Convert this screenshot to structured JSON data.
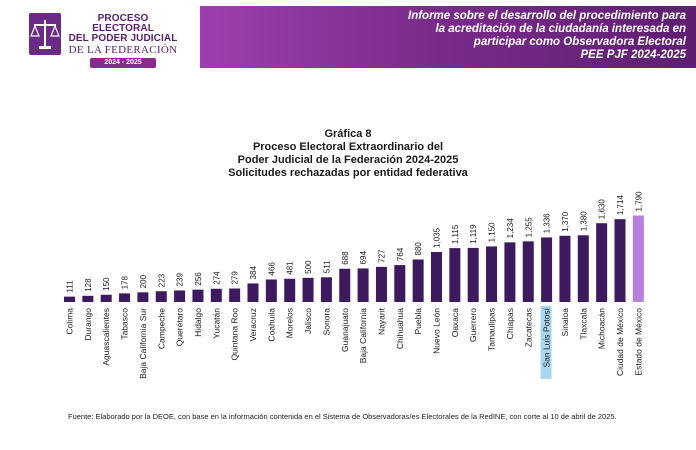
{
  "logo": {
    "line1": "PROCESO ELECTORAL",
    "line2": "DEL PODER JUDICIAL",
    "line3": "DE LA FEDERACIÓN",
    "years": "2024 - 2025"
  },
  "banner": {
    "line1": "Informe sobre el desarrollo del procedimiento para",
    "line2": "la acreditación de la ciudadanía interesada en",
    "line3": "participar como Observadora Electoral",
    "line4": "PEE PJF 2024-2025"
  },
  "chart_title": {
    "line1": "Gráfica 8",
    "line2": "Proceso Electoral Extraordinario del",
    "line3": "Poder Judicial de la Federación 2024-2025",
    "line4": "Solicitudes rechazadas por entidad federativa"
  },
  "source": "Fuente: Elaborado por la DEOE, con base en la información contenida en el Sistema de Observadoras/es Electorales de la RedINE, con corte al 10 de abril de 2025.",
  "colors": {
    "bar": "#3d1a5f",
    "bar_highlight": "#b77fe0",
    "banner": "#7b2c8c",
    "label_highlight": "#a9d7f0"
  },
  "chart_data": {
    "type": "bar",
    "title": "Solicitudes rechazadas por entidad federativa",
    "categories": [
      "Colima",
      "Durango",
      "Aguascalientes",
      "Tabasco",
      "Baja California Sur",
      "Campeche",
      "Querétaro",
      "Hidalgo",
      "Yucatán",
      "Quintana Roo",
      "Veracruz",
      "Coahuila",
      "Morelos",
      "Jalisco",
      "Sonora",
      "Guanajuato",
      "Baja California",
      "Nayarit",
      "Chihuahua",
      "Puebla",
      "Nuevo León",
      "Oaxaca",
      "Guerrero",
      "Tamaulipas",
      "Chiapas",
      "Zacatecas",
      "San Luis Potosí",
      "Sinaloa",
      "Tlaxcala",
      "Michoacán",
      "Ciudad de México",
      "Estado de México"
    ],
    "values": [
      111,
      128,
      150,
      178,
      200,
      223,
      239,
      256,
      274,
      279,
      384,
      466,
      481,
      500,
      511,
      688,
      694,
      727,
      764,
      880,
      1035,
      1115,
      1119,
      1150,
      1234,
      1255,
      1336,
      1370,
      1380,
      1630,
      1714,
      1790
    ],
    "value_labels": [
      "111",
      "128",
      "150",
      "178",
      "200",
      "223",
      "239",
      "256",
      "274",
      "279",
      "384",
      "466",
      "481",
      "500",
      "511",
      "688",
      "694",
      "727",
      "764",
      "880",
      "1,035",
      "1,115",
      "1,119",
      "1,150",
      "1,234",
      "1,255",
      "1,336",
      "1,370",
      "1,380",
      "1,630",
      "1,714",
      "1,790"
    ],
    "highlight_bar": "Estado de México",
    "highlight_label": "San Luis Potosí",
    "ylim": [
      0,
      1800
    ],
    "grid": false,
    "legend": false
  }
}
